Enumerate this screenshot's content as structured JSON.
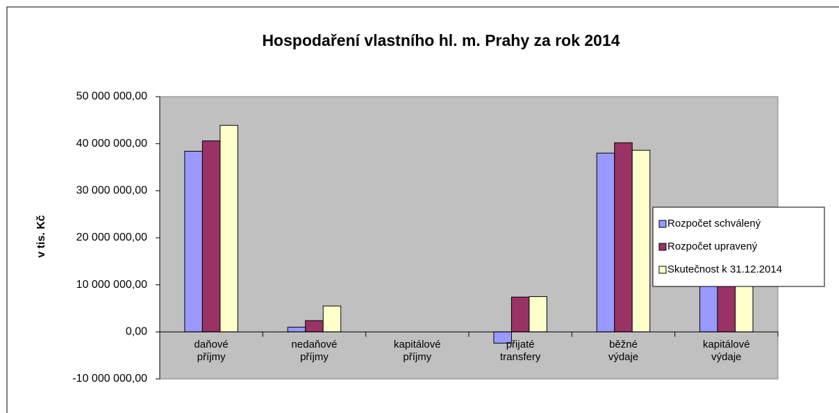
{
  "chart_data": {
    "type": "bar",
    "title": "Hospodaření vlastního hl. m. Prahy za rok 2014",
    "ylabel": "v tis. Kč",
    "categories": [
      "daňové příjmy",
      "nedaňové příjmy",
      "kapitálové příjmy",
      "přijaté transfery",
      "běžné výdaje",
      "kapitálové výdaje"
    ],
    "series": [
      {
        "name": "Rozpočet schválený",
        "color": "#9999ff",
        "values": [
          38400000,
          1000000,
          0,
          -2400000,
          38000000,
          10000000
        ]
      },
      {
        "name": "Rozpočet upravený",
        "color": "#993366",
        "values": [
          40600000,
          2400000,
          0,
          7400000,
          40200000,
          17700000
        ]
      },
      {
        "name": "Skutečnost k 31.12.2014",
        "color": "#ffffcc",
        "values": [
          43900000,
          5500000,
          0,
          7500000,
          38600000,
          16000000
        ]
      }
    ],
    "ylim": [
      -10000000,
      50000000
    ],
    "yticks": [
      {
        "value": -10000000,
        "label": "-10 000 000,00"
      },
      {
        "value": 0,
        "label": "0,00"
      },
      {
        "value": 10000000,
        "label": "10 000 000,00"
      },
      {
        "value": 20000000,
        "label": "20 000 000,00"
      },
      {
        "value": 30000000,
        "label": "30 000 000,00"
      },
      {
        "value": 40000000,
        "label": "40 000 000,00"
      },
      {
        "value": 50000000,
        "label": "50 000 000,00"
      }
    ],
    "grid": false,
    "legend": "right"
  }
}
